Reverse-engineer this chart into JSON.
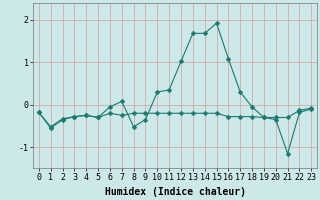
{
  "title": "",
  "xlabel": "Humidex (Indice chaleur)",
  "background_color": "#cce8e8",
  "grid_color": "#d4a0a0",
  "line_color": "#1a7a6e",
  "xlim": [
    -0.5,
    23.5
  ],
  "ylim": [
    -1.5,
    2.4
  ],
  "yticks": [
    -1,
    0,
    1,
    2
  ],
  "xticks": [
    0,
    1,
    2,
    3,
    4,
    5,
    6,
    7,
    8,
    9,
    10,
    11,
    12,
    13,
    14,
    15,
    16,
    17,
    18,
    19,
    20,
    21,
    22,
    23
  ],
  "series1_x": [
    0,
    1,
    2,
    3,
    4,
    5,
    6,
    7,
    8,
    9,
    10,
    11,
    12,
    13,
    14,
    15,
    16,
    17,
    18,
    19,
    20,
    21,
    22,
    23
  ],
  "series1_y": [
    -0.18,
    -0.52,
    -0.33,
    -0.28,
    -0.25,
    -0.3,
    -0.2,
    -0.25,
    -0.2,
    -0.2,
    -0.2,
    -0.2,
    -0.2,
    -0.2,
    -0.2,
    -0.2,
    -0.28,
    -0.28,
    -0.28,
    -0.3,
    -0.3,
    -0.3,
    -0.13,
    -0.08
  ],
  "series2_x": [
    0,
    1,
    2,
    3,
    4,
    5,
    6,
    7,
    8,
    9,
    10,
    11,
    12,
    13,
    14,
    15,
    16,
    17,
    18,
    19,
    20,
    21,
    22,
    23
  ],
  "series2_y": [
    -0.18,
    -0.55,
    -0.35,
    -0.28,
    -0.25,
    -0.3,
    -0.05,
    0.08,
    -0.52,
    -0.35,
    0.3,
    0.35,
    1.02,
    1.68,
    1.68,
    1.92,
    1.08,
    0.3,
    -0.05,
    -0.3,
    -0.35,
    -1.15,
    -0.18,
    -0.1
  ],
  "markersize": 2.5,
  "linewidth": 0.8,
  "xlabel_fontsize": 7,
  "tick_fontsize": 6,
  "tick_labelsize": 6
}
